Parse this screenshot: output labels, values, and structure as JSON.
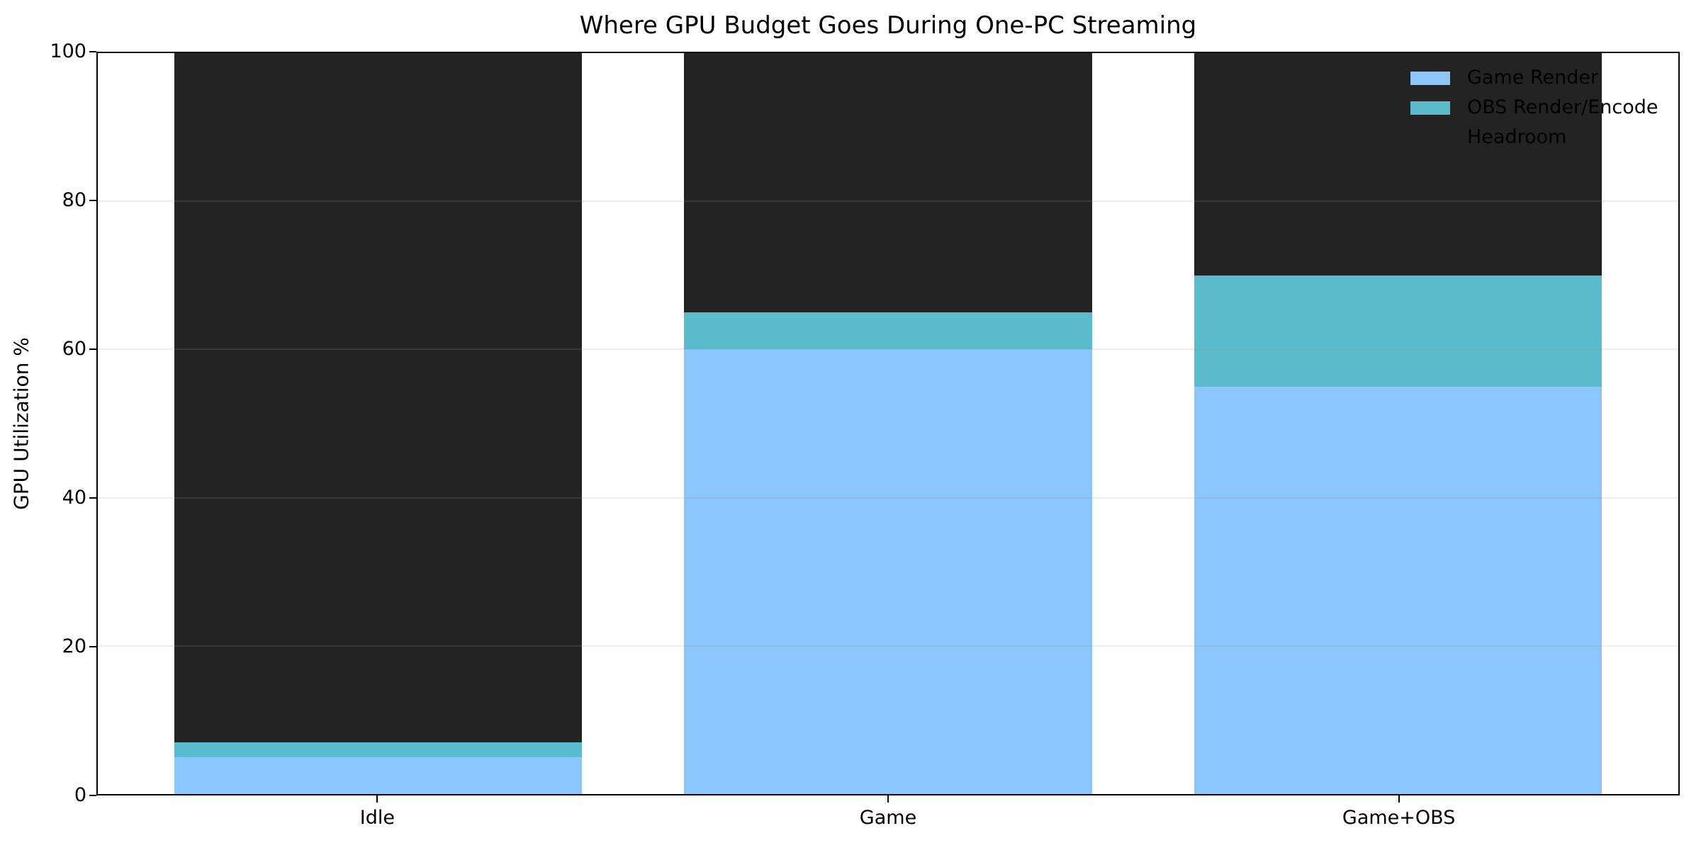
{
  "figure": {
    "background": "#ffffff",
    "axis_color": "#000000",
    "text_color": "#000000"
  },
  "chart_data": {
    "type": "bar",
    "stacked": true,
    "title": "Where GPU Budget Goes During One-PC Streaming",
    "xlabel": "",
    "ylabel": "GPU Utilization %",
    "categories": [
      "Idle",
      "Game",
      "Game+OBS"
    ],
    "series": [
      {
        "name": "Game Render",
        "color": "#8cc5fc",
        "values": [
          5,
          60,
          55
        ]
      },
      {
        "name": "OBS Render/Encode",
        "color": "#59bbcc",
        "values": [
          2,
          5,
          15
        ]
      },
      {
        "name": "Headroom",
        "color": "#232323",
        "values": [
          93,
          35,
          30
        ]
      }
    ],
    "ylim": [
      0,
      100
    ],
    "yticks": [
      0,
      20,
      40,
      60,
      80,
      100
    ],
    "bar_width_fraction": 0.8,
    "grid": "horizontal gridlines drawn above bars",
    "grid_color": "rgba(150,150,150,0.18)",
    "legend_position": "upper right, no frame"
  }
}
